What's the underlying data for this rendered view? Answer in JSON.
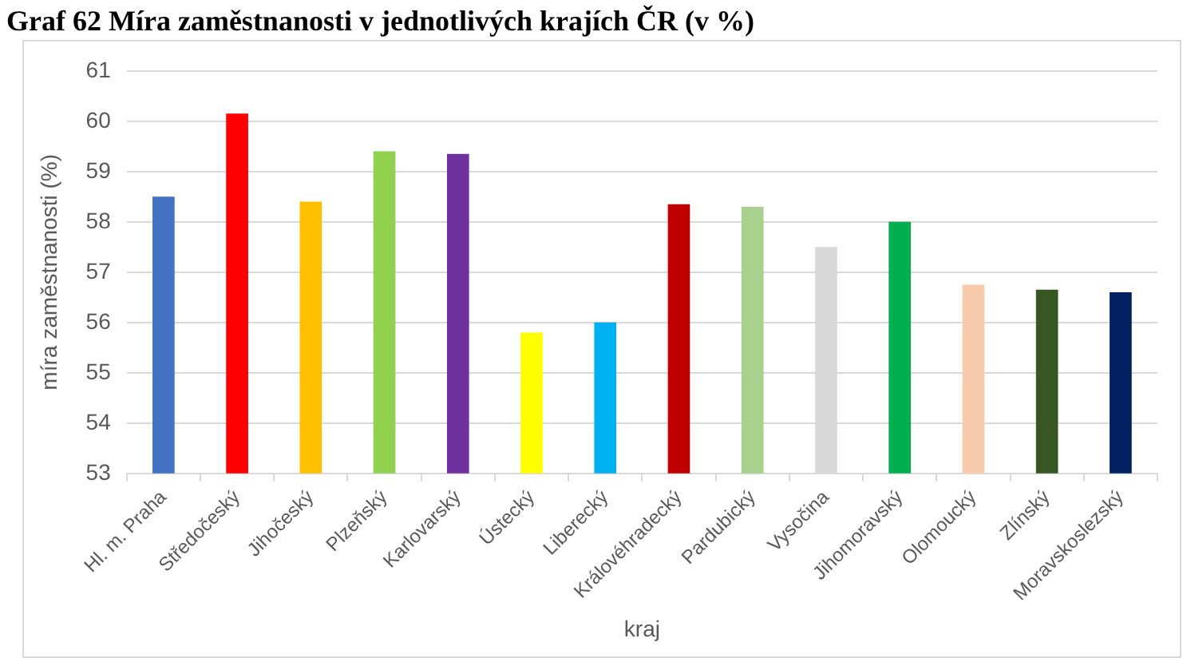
{
  "chart_data": {
    "type": "bar",
    "title": "Graf 62 Míra zaměstnanosti v jednotlivých krajích ČR (v %)",
    "xlabel": "kraj",
    "ylabel": "míra zaměstnanosti (%)",
    "categories": [
      "Hl. m. Praha",
      "Středočeský",
      "Jihočeský",
      "Plzeňský",
      "Karlovarský",
      "Ústecký",
      "Liberecký",
      "Královéhradecký",
      "Pardubický",
      "Vysočina",
      "Jihomoravský",
      "Olomoucký",
      "Zlínský",
      "Moravskoslezský"
    ],
    "values": [
      58.5,
      60.15,
      58.4,
      59.4,
      59.35,
      55.8,
      56.0,
      58.35,
      58.3,
      57.5,
      58.0,
      56.75,
      56.65,
      56.6
    ],
    "colors": [
      "#4472c4",
      "#ff0000",
      "#ffc000",
      "#92d050",
      "#7030a0",
      "#ffff00",
      "#00b0f0",
      "#c00000",
      "#a9d18e",
      "#d9d9d9",
      "#00b050",
      "#f8cbad",
      "#375623",
      "#002060"
    ],
    "ylim": [
      53,
      61
    ],
    "yticks": [
      53,
      54,
      55,
      56,
      57,
      58,
      59,
      60,
      61
    ],
    "grid": "y"
  }
}
